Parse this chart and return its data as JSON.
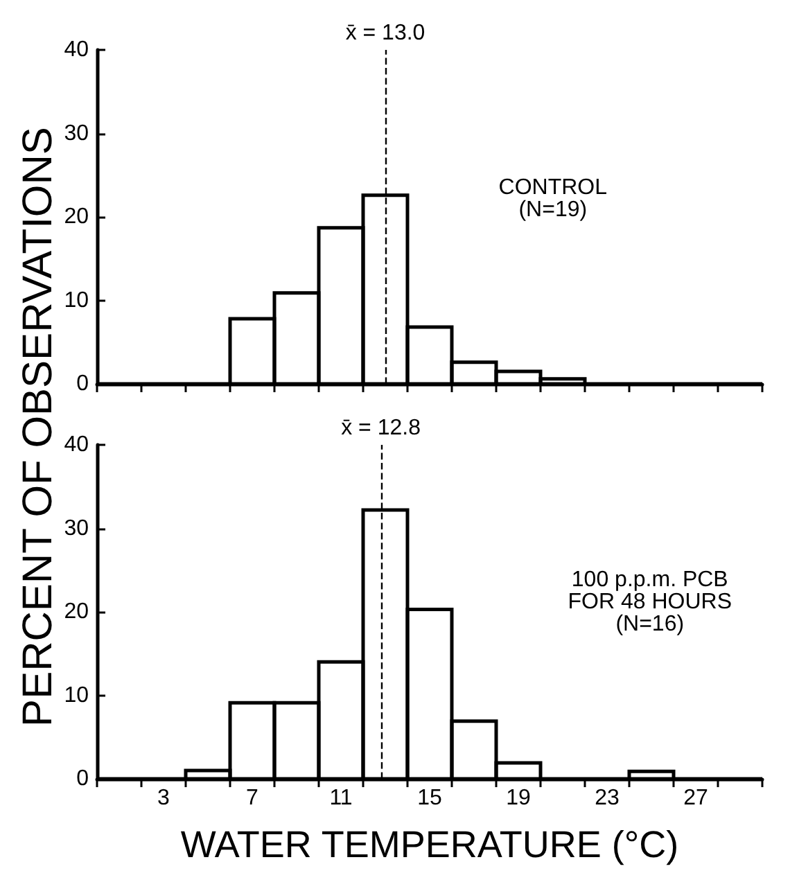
{
  "chart_data": [
    {
      "type": "histogram",
      "ylabel": "PERCENT OF OBSERVATIONS",
      "color": "#000000",
      "bins": [
        0,
        2,
        4,
        6,
        8,
        10,
        12,
        14,
        16,
        18,
        20,
        22,
        24,
        26,
        28,
        30
      ],
      "values": [
        0,
        0,
        0,
        7.8,
        10.9,
        18.7,
        22.6,
        6.8,
        2.6,
        1.5,
        0.6,
        0,
        0,
        0,
        0
      ],
      "xlim": [
        0,
        30
      ],
      "ylim": [
        0,
        40
      ],
      "yticks": [
        0,
        10,
        20,
        30,
        40
      ],
      "tick_labels": "y",
      "xticks": [
        {
          "value": 0,
          "label": null
        },
        {
          "value": 2,
          "label": null
        },
        {
          "value": 4,
          "label": null
        },
        {
          "value": 6,
          "label": null
        },
        {
          "value": 8,
          "label": null
        },
        {
          "value": 10,
          "label": null
        },
        {
          "value": 12,
          "label": null
        },
        {
          "value": 14,
          "label": null
        },
        {
          "value": 16,
          "label": null
        },
        {
          "value": 18,
          "label": null
        },
        {
          "value": 20,
          "label": null
        },
        {
          "value": 22,
          "label": null
        },
        {
          "value": 24,
          "label": null
        },
        {
          "value": 26,
          "label": null
        },
        {
          "value": 28,
          "label": null
        },
        {
          "value": 30,
          "label": null
        }
      ],
      "ref_lines": [
        {
          "axis": "x",
          "value": 13.0,
          "label": "x̄ = 13.0",
          "line_style": "dashed"
        }
      ],
      "annotations": [
        "CONTROL\n(N=19)"
      ]
    },
    {
      "type": "histogram",
      "xlabel": "WATER TEMPERATURE (°C)",
      "color": "#000000",
      "bins": [
        0,
        2,
        4,
        6,
        8,
        10,
        12,
        14,
        16,
        18,
        20,
        22,
        24,
        26,
        28,
        30
      ],
      "values": [
        0,
        0,
        1.0,
        9.1,
        9.1,
        14.0,
        32.2,
        20.3,
        6.9,
        1.9,
        0,
        0,
        0.9,
        0,
        0
      ],
      "xlim": [
        0,
        30
      ],
      "ylim": [
        0,
        40
      ],
      "yticks": [
        0,
        10,
        20,
        30,
        40
      ],
      "xticks": [
        {
          "value": 0,
          "label": null
        },
        {
          "value": 2,
          "label": null
        },
        {
          "value": 3,
          "label": "3"
        },
        {
          "value": 4,
          "label": null
        },
        {
          "value": 6,
          "label": null
        },
        {
          "value": 7,
          "label": "7"
        },
        {
          "value": 8,
          "label": null
        },
        {
          "value": 10,
          "label": null
        },
        {
          "value": 11,
          "label": "11"
        },
        {
          "value": 12,
          "label": null
        },
        {
          "value": 14,
          "label": null
        },
        {
          "value": 15,
          "label": "15"
        },
        {
          "value": 16,
          "label": null
        },
        {
          "value": 18,
          "label": null
        },
        {
          "value": 19,
          "label": "19"
        },
        {
          "value": 20,
          "label": null
        },
        {
          "value": 22,
          "label": null
        },
        {
          "value": 23,
          "label": "23"
        },
        {
          "value": 24,
          "label": null
        },
        {
          "value": 26,
          "label": null
        },
        {
          "value": 27,
          "label": "27"
        },
        {
          "value": 28,
          "label": null
        },
        {
          "value": 30,
          "label": null
        }
      ],
      "ref_lines": [
        {
          "axis": "x",
          "value": 12.8,
          "label": "x̄ = 12.8",
          "line_style": "dashed"
        }
      ],
      "annotations": [
        "100 p.p.m. PCB\nFOR 48 HOURS\n(N=16)"
      ]
    }
  ]
}
